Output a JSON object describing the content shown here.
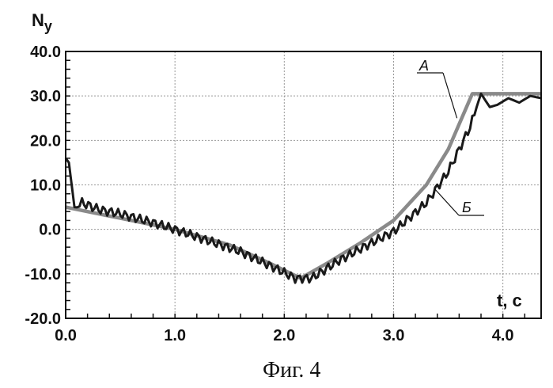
{
  "caption": "Фиг. 4",
  "chart_data": {
    "type": "line",
    "ylabel_main": "N",
    "ylabel_sub": "y",
    "xlabel": "t, c",
    "xlim": [
      0.0,
      4.35
    ],
    "ylim": [
      -20.0,
      40.0
    ],
    "grid": true,
    "x_ticks": [
      "0.0",
      "1.0",
      "2.0",
      "3.0",
      "4.0"
    ],
    "x_tick_values": [
      0,
      1,
      2,
      3,
      4
    ],
    "y_ticks": [
      "40.0",
      "30.0",
      "20.0",
      "10.0",
      "0.0",
      "-10.0",
      "-20.0"
    ],
    "y_tick_values": [
      40,
      30,
      20,
      10,
      0,
      -10,
      -20
    ],
    "series": [
      {
        "name": "А",
        "color": "#8a8a8a",
        "x": [
          0.0,
          0.2,
          0.5,
          1.0,
          1.5,
          1.9,
          2.15,
          2.4,
          2.7,
          3.0,
          3.3,
          3.5,
          3.72,
          4.35
        ],
        "y": [
          5.0,
          4.0,
          2.5,
          0.0,
          -3.5,
          -8.0,
          -11.0,
          -7.5,
          -3.0,
          2.0,
          10.0,
          18.0,
          30.5,
          30.5
        ]
      },
      {
        "name": "Б",
        "color": "#1a1a1a",
        "x": [
          0.0,
          0.03,
          0.08,
          0.15,
          0.3,
          0.5,
          0.8,
          1.0,
          1.3,
          1.6,
          1.9,
          2.1,
          2.25,
          2.5,
          2.8,
          3.0,
          3.3,
          3.5,
          3.7,
          3.8,
          3.88,
          3.95,
          4.05,
          4.15,
          4.25,
          4.35
        ],
        "y": [
          16.0,
          15.0,
          5.0,
          6.0,
          4.5,
          3.5,
          1.5,
          0.0,
          -2.5,
          -5.0,
          -8.5,
          -11.0,
          -11.0,
          -7.0,
          -3.0,
          -0.5,
          6.0,
          13.0,
          23.0,
          30.5,
          27.5,
          28.0,
          29.5,
          28.5,
          30.0,
          29.5
        ]
      }
    ]
  }
}
